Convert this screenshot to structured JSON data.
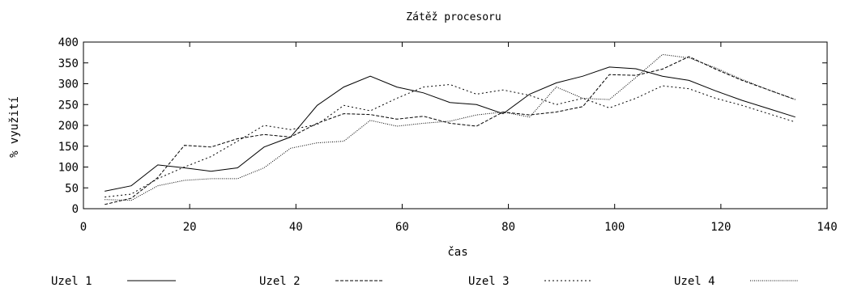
{
  "chart_data": {
    "type": "line",
    "title": "Zátěž procesoru",
    "xlabel": "čas",
    "ylabel": "% využití",
    "xlim": [
      0,
      140
    ],
    "ylim": [
      0,
      400
    ],
    "xticks": [
      0,
      20,
      40,
      60,
      80,
      100,
      120,
      140
    ],
    "yticks": [
      0,
      50,
      100,
      150,
      200,
      250,
      300,
      350,
      400
    ],
    "grid": false,
    "legend_position": "bottom",
    "x": [
      4,
      9,
      14,
      19,
      24,
      29,
      34,
      39,
      44,
      49,
      54,
      59,
      64,
      69,
      74,
      79,
      84,
      89,
      94,
      99,
      104,
      109,
      114,
      119,
      124,
      129,
      134
    ],
    "series": [
      {
        "name": "Uzel 1",
        "dash": "solid",
        "values": [
          42,
          55,
          105,
          98,
          90,
          98,
          148,
          172,
          248,
          292,
          318,
          292,
          278,
          255,
          250,
          228,
          275,
          302,
          318,
          340,
          336,
          318,
          308,
          283,
          260,
          240,
          220
        ]
      },
      {
        "name": "Uzel 2",
        "dash": "dashed",
        "values": [
          10,
          25,
          75,
          152,
          148,
          168,
          178,
          172,
          205,
          228,
          226,
          215,
          222,
          205,
          198,
          232,
          225,
          232,
          245,
          322,
          320,
          335,
          365,
          335,
          308,
          285,
          262
        ]
      },
      {
        "name": "Uzel 3",
        "dash": "dotted",
        "values": [
          28,
          35,
          72,
          100,
          125,
          162,
          200,
          190,
          202,
          248,
          235,
          265,
          292,
          298,
          275,
          285,
          272,
          250,
          265,
          242,
          265,
          295,
          288,
          265,
          248,
          228,
          208
        ]
      },
      {
        "name": "Uzel 4",
        "dash": "fine-dotted",
        "values": [
          22,
          20,
          55,
          68,
          72,
          72,
          98,
          145,
          158,
          162,
          212,
          198,
          205,
          210,
          225,
          232,
          220,
          292,
          265,
          262,
          315,
          370,
          362,
          338,
          310,
          285,
          262
        ]
      }
    ]
  }
}
